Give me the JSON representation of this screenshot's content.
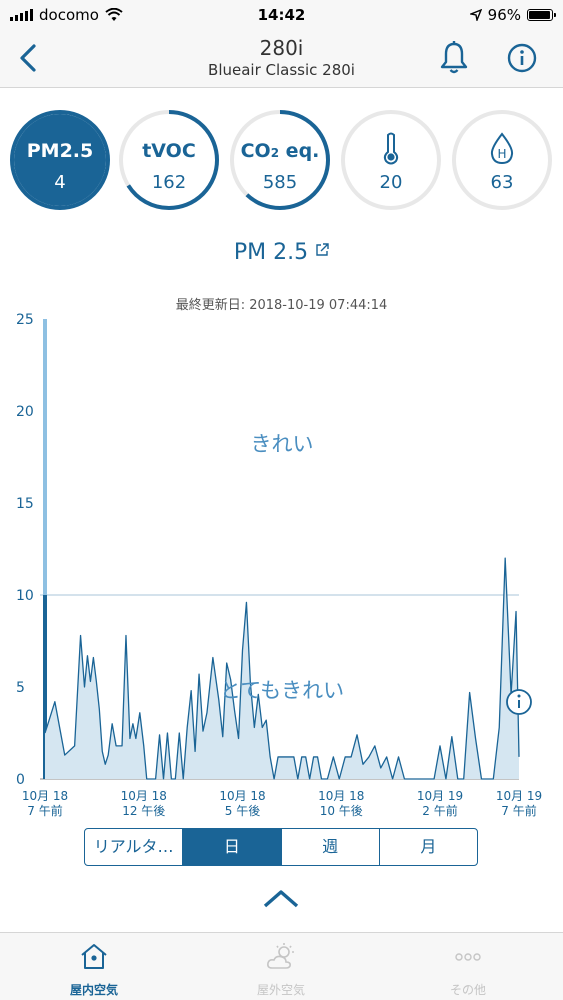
{
  "status_bar": {
    "carrier": "docomo",
    "time": "14:42",
    "battery": "96%",
    "battery_level": 0.96
  },
  "header": {
    "title": "280i",
    "subtitle": "Blueair Classic 280i"
  },
  "gauges": [
    {
      "label": "PM2.5",
      "value": "4",
      "icon": null,
      "active": true,
      "fill": 0.95
    },
    {
      "label": "tVOC",
      "value": "162",
      "icon": null,
      "active": false,
      "fill": 0.66
    },
    {
      "label_main": "CO",
      "label_sub": "2",
      "label_rest": " eq.",
      "value": "585",
      "icon": null,
      "active": false,
      "fill": 0.62
    },
    {
      "label": "",
      "value": "20",
      "icon": "thermometer-icon",
      "active": false,
      "fill": 0
    },
    {
      "label": "",
      "value": "63",
      "icon": "humidity-drop-icon",
      "icon_text": "H",
      "active": false,
      "fill": 0
    }
  ],
  "chart_heading": "PM 2.5",
  "last_updated": "最終更新日: 2018-10-19 07:44:14",
  "chart_data": {
    "type": "area",
    "title": "PM 2.5",
    "ylim": [
      0,
      25
    ],
    "yticks": [
      "0",
      "5",
      "10",
      "15",
      "20",
      "25"
    ],
    "xticks": [
      {
        "top": "10月 18",
        "bottom": "7 午前"
      },
      {
        "top": "10月 18",
        "bottom": "12 午後"
      },
      {
        "top": "10月 18",
        "bottom": "5 午後"
      },
      {
        "top": "10月 18",
        "bottom": "10 午後"
      },
      {
        "top": "10月 19",
        "bottom": "2 午前"
      },
      {
        "top": "10月 19",
        "bottom": "7 午前"
      }
    ],
    "threshold": 10,
    "zones": [
      {
        "label": "きれい",
        "y": 18.2
      },
      {
        "label": "とてもきれい",
        "y": 4.8
      }
    ],
    "x_hours": [
      0,
      0.15,
      0.5,
      1,
      1.5,
      1.8,
      2,
      2.15,
      2.3,
      2.45,
      2.6,
      2.75,
      2.9,
      3.05,
      3.2,
      3.4,
      3.6,
      3.9,
      4.1,
      4.3,
      4.45,
      4.6,
      4.8,
      5.0,
      5.15,
      5.3,
      5.45,
      5.6,
      5.8,
      6.0,
      6.2,
      6.4,
      6.6,
      6.8,
      7.0,
      7.2,
      7.4,
      7.6,
      7.8,
      8.0,
      8.2,
      8.5,
      8.8,
      9.0,
      9.2,
      9.4,
      9.6,
      9.8,
      10.0,
      10.2,
      10.4,
      10.6,
      10.8,
      11.0,
      11.2,
      11.4,
      11.6,
      11.8,
      12.0,
      12.2,
      12.4,
      12.6,
      12.8,
      13.0,
      13.2,
      13.4,
      13.6,
      13.8,
      14.0,
      14.3,
      14.6,
      14.9,
      15.2,
      15.5,
      15.8,
      16.1,
      16.4,
      16.7,
      17.0,
      17.3,
      17.6,
      17.9,
      18.2,
      18.5,
      18.8,
      19.1,
      19.4,
      19.7,
      20.0,
      20.3,
      20.6,
      20.9,
      21.2,
      21.5,
      21.8,
      22.1,
      22.4,
      22.7,
      23.0,
      23.3,
      23.6,
      23.85,
      24.0
    ],
    "values": [
      2.5,
      3,
      4.2,
      1.3,
      1.8,
      7.8,
      5,
      6.7,
      5.3,
      6.6,
      5.3,
      3.8,
      1.5,
      0.8,
      1.3,
      3.0,
      1.8,
      1.8,
      7.8,
      2.2,
      3.0,
      2.2,
      3.6,
      1.8,
      0,
      0,
      0,
      0,
      2.4,
      0,
      2.5,
      0,
      0,
      2.5,
      0,
      2.8,
      4.8,
      1.5,
      5.7,
      2.6,
      3.6,
      6.6,
      4.3,
      2.3,
      6.3,
      5.4,
      3.7,
      2.2,
      7.0,
      9.6,
      5.2,
      2.8,
      4.6,
      2.8,
      3.2,
      1.2,
      0,
      1.2,
      1.2,
      1.2,
      1.2,
      1.2,
      0,
      1.2,
      1.2,
      0,
      1.2,
      1.2,
      0,
      0,
      1.2,
      0,
      1.2,
      1.2,
      2.4,
      0.8,
      1.2,
      1.8,
      0.6,
      1.2,
      0,
      1.2,
      0,
      0,
      0,
      0,
      0,
      0,
      1.8,
      0,
      2.3,
      0,
      0,
      4.7,
      2.2,
      0,
      0,
      0,
      2.8,
      12.0,
      4.6,
      9.1,
      1.2
    ]
  },
  "segments": [
    {
      "label": "リアルタ…",
      "active": false
    },
    {
      "label": "日",
      "active": true
    },
    {
      "label": "週",
      "active": false
    },
    {
      "label": "月",
      "active": false
    }
  ],
  "tabs": [
    {
      "label": "屋内空気",
      "icon": "house-icon",
      "active": true
    },
    {
      "label": "屋外空気",
      "icon": "weather-icon",
      "active": false
    },
    {
      "label": "その他",
      "icon": "more-icon",
      "active": false
    }
  ],
  "colors": {
    "accent": "#1a6496",
    "area_fill": "#d5e6f1",
    "inactive": "#c5c5c5",
    "ring_track": "#e8e8e8"
  }
}
